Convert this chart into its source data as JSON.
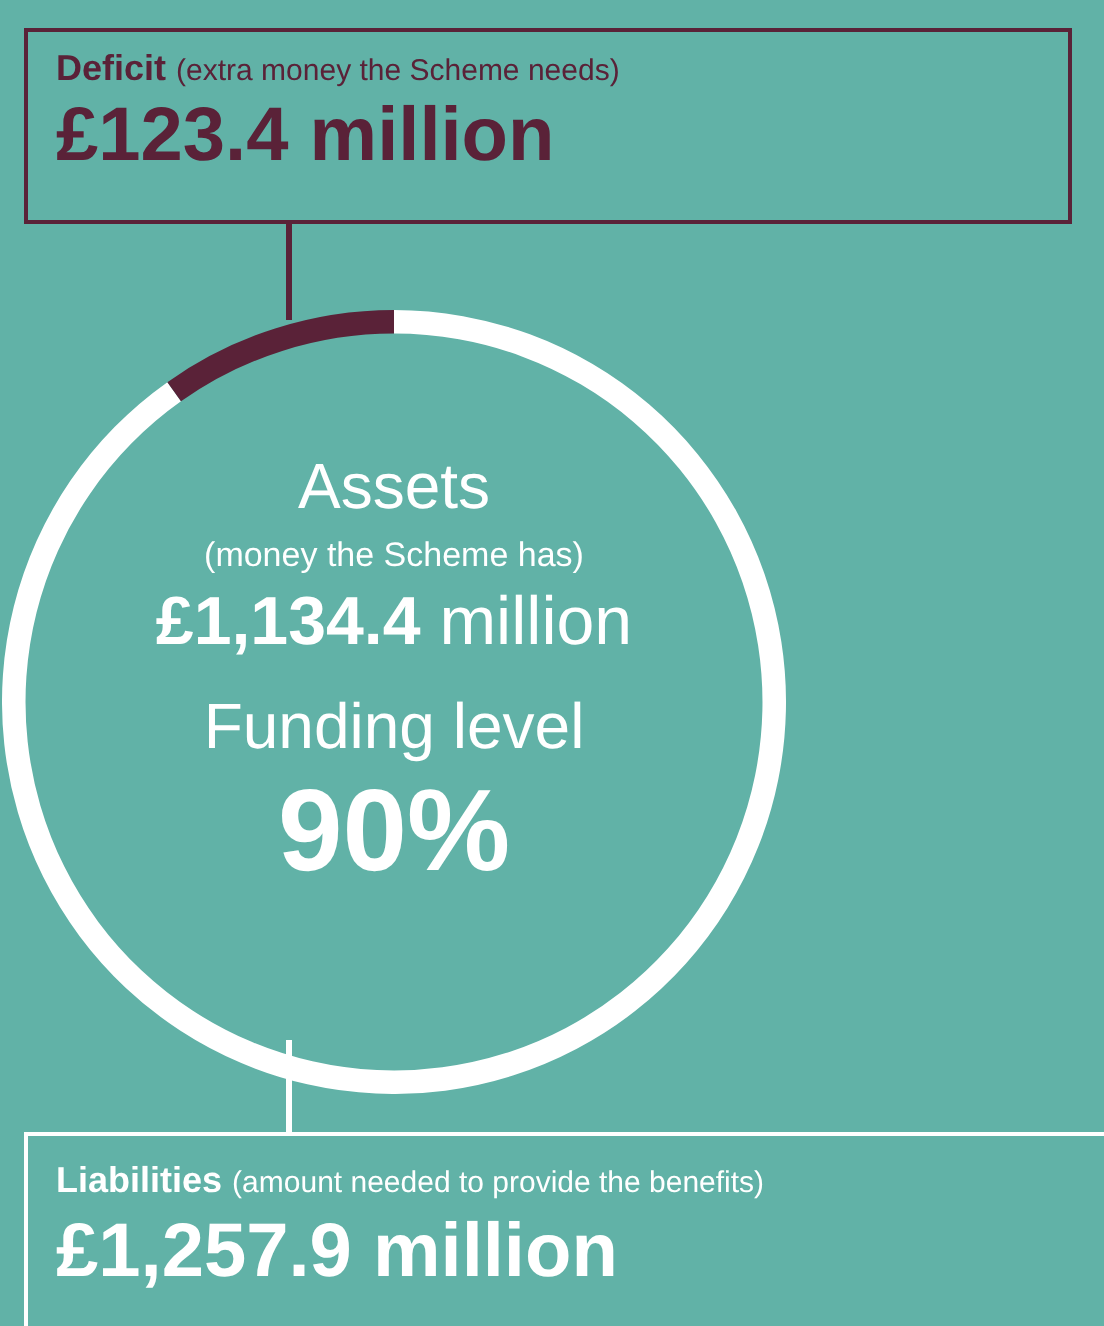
{
  "chart_data": {
    "type": "donut",
    "categories": [
      null,
      null
    ],
    "values": [
      1134.4,
      123.4
    ],
    "value_labels": [
      "£1,134.4",
      "£123.4 million"
    ],
    "colors": [
      "#ffffff",
      "#5a2238"
    ],
    "legend": false,
    "annotations": [
      "Deficit",
      "(extra money the Scheme needs)",
      "Assets",
      "(money the Scheme has)",
      "million",
      "Funding level",
      "90%",
      "Liabilities",
      "(amount needed to provide the benefits)",
      "£1,257.9 million"
    ]
  }
}
